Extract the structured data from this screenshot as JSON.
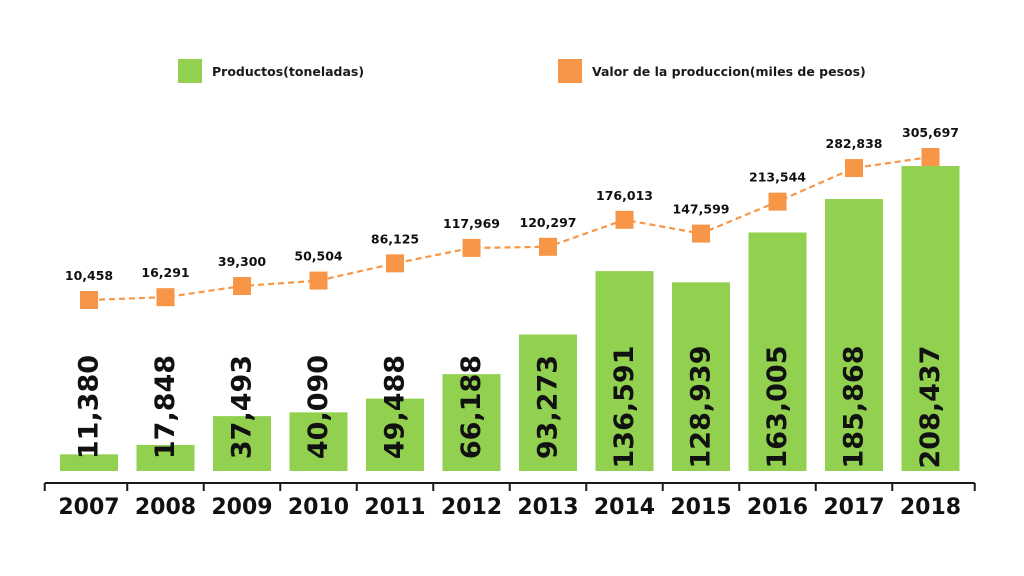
{
  "colors": {
    "bar": "#92d050",
    "line": "#f79646",
    "axis": "#1a1a1a",
    "text": "#111111"
  },
  "legend": [
    {
      "label": "Productos(toneladas)",
      "color": "#92d050",
      "shape": "square"
    },
    {
      "label": "Valor de la produccion(miles de pesos)",
      "color": "#f79646",
      "shape": "square"
    }
  ],
  "chart_data": {
    "type": "bar",
    "title": "",
    "xlabel": "",
    "ylabel": "",
    "legend_position": "top",
    "grid": false,
    "categories": [
      "2007",
      "2008",
      "2009",
      "2010",
      "2011",
      "2012",
      "2013",
      "2014",
      "2015",
      "2016",
      "2017",
      "2018"
    ],
    "series": [
      {
        "name": "Productos(toneladas)",
        "type": "bar",
        "values": [
          11380,
          17848,
          37493,
          40090,
          49488,
          66188,
          93273,
          136591,
          128939,
          163005,
          185868,
          208437
        ],
        "labels": [
          "11,380",
          "17,848",
          "37,493",
          "40,090",
          "49,488",
          "66,188",
          "93,273",
          "136,591",
          "128,939",
          "163,005",
          "185,868",
          "208,437"
        ]
      },
      {
        "name": "Valor de la produccion(miles de pesos)",
        "type": "line",
        "values": [
          10458,
          16291,
          39300,
          50504,
          86125,
          117969,
          120297,
          176013,
          147599,
          213544,
          282838,
          305697
        ],
        "labels": [
          "10,458",
          "16,291",
          "39,300",
          "50,504",
          "86,125",
          "117,969",
          "120,297",
          "176,013",
          "147,599",
          "213,544",
          "282,838",
          "305,697"
        ]
      }
    ]
  }
}
